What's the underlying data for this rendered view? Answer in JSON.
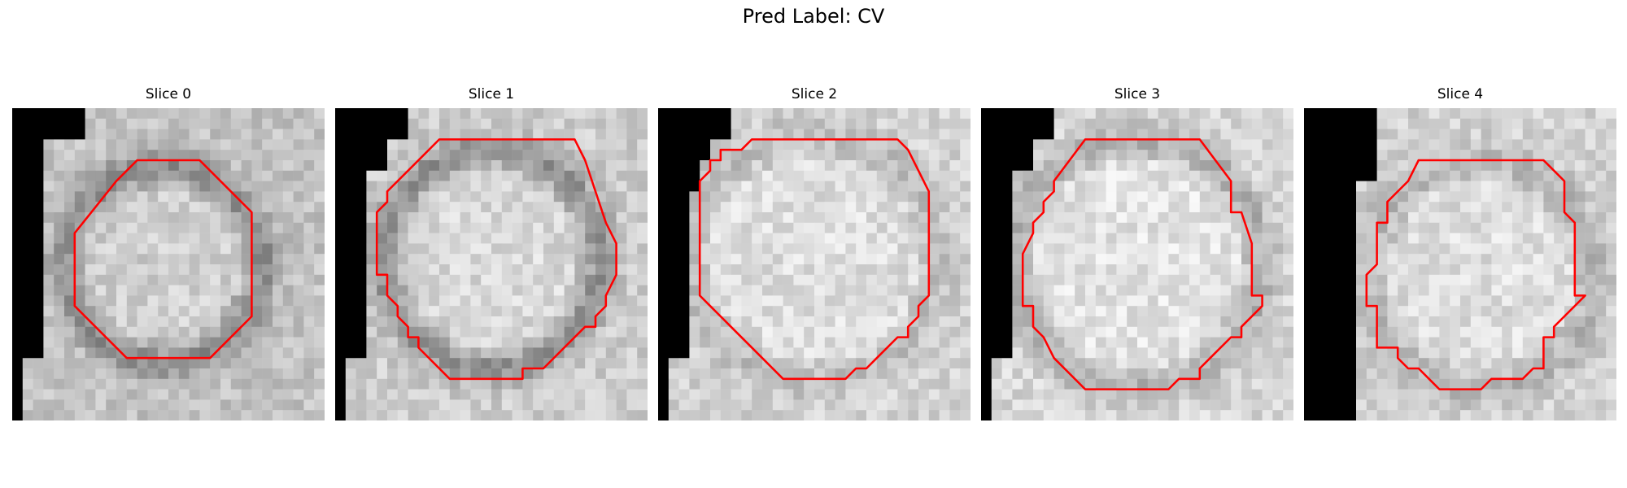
{
  "figure": {
    "title": "Pred Label: CV"
  },
  "panels": [
    {
      "title": "Slice 0",
      "mask": "red-contour-outline",
      "contour": [
        [
          12,
          5
        ],
        [
          18,
          5
        ],
        [
          23,
          10
        ],
        [
          23,
          20
        ],
        [
          19,
          24
        ],
        [
          11,
          24
        ],
        [
          6,
          19
        ],
        [
          6,
          12
        ],
        [
          10,
          7
        ],
        [
          11,
          6
        ]
      ],
      "dark_mask": [
        [
          0,
          0
        ],
        [
          7,
          0
        ],
        [
          7,
          3
        ],
        [
          3,
          3
        ],
        [
          3,
          9
        ],
        [
          3,
          24
        ],
        [
          1,
          24
        ],
        [
          1,
          30
        ],
        [
          0,
          30
        ]
      ],
      "texture": {
        "base": 195,
        "ring_center": [
          14.5,
          15
        ],
        "ring_radius": 9.5,
        "ring_darkness": 55,
        "seed": 11
      }
    },
    {
      "title": "Slice 1",
      "mask": "red-contour-outline",
      "contour": [
        [
          10,
          3
        ],
        [
          23,
          3
        ],
        [
          24,
          5
        ],
        [
          25,
          8
        ],
        [
          26,
          11
        ],
        [
          27,
          13
        ],
        [
          27,
          16
        ],
        [
          26,
          18
        ],
        [
          26,
          19
        ],
        [
          25,
          20
        ],
        [
          25,
          21
        ],
        [
          24,
          21
        ],
        [
          20,
          25
        ],
        [
          18,
          25
        ],
        [
          18,
          26
        ],
        [
          11,
          26
        ],
        [
          8,
          23
        ],
        [
          8,
          22
        ],
        [
          7,
          22
        ],
        [
          7,
          21
        ],
        [
          6,
          20
        ],
        [
          6,
          19
        ],
        [
          5,
          18
        ],
        [
          5,
          16
        ],
        [
          4,
          16
        ],
        [
          4,
          10
        ],
        [
          5,
          9
        ],
        [
          5,
          8
        ]
      ],
      "dark_mask": [
        [
          0,
          0
        ],
        [
          7,
          0
        ],
        [
          7,
          3
        ],
        [
          5,
          3
        ],
        [
          5,
          6
        ],
        [
          3,
          6
        ],
        [
          3,
          24
        ],
        [
          1,
          24
        ],
        [
          1,
          30
        ],
        [
          0,
          30
        ]
      ],
      "texture": {
        "base": 205,
        "ring_center": [
          15,
          14.5
        ],
        "ring_radius": 10.5,
        "ring_darkness": 60,
        "seed": 23
      }
    },
    {
      "title": "Slice 2",
      "mask": "red-contour-outline",
      "contour": [
        [
          9,
          3
        ],
        [
          23,
          3
        ],
        [
          24,
          4
        ],
        [
          25,
          6
        ],
        [
          26,
          8
        ],
        [
          26,
          18
        ],
        [
          25,
          19
        ],
        [
          25,
          20
        ],
        [
          24,
          21
        ],
        [
          24,
          22
        ],
        [
          23,
          22
        ],
        [
          21,
          24
        ],
        [
          20,
          25
        ],
        [
          19,
          25
        ],
        [
          18,
          26
        ],
        [
          12,
          26
        ],
        [
          10,
          24
        ],
        [
          7,
          21
        ],
        [
          6,
          20
        ],
        [
          5,
          19
        ],
        [
          4,
          18
        ],
        [
          4,
          7
        ],
        [
          5,
          6
        ],
        [
          5,
          5
        ],
        [
          6,
          5
        ],
        [
          6,
          4
        ],
        [
          8,
          4
        ],
        [
          9,
          3
        ]
      ],
      "dark_mask": [
        [
          0,
          0
        ],
        [
          7,
          0
        ],
        [
          7,
          3
        ],
        [
          5,
          3
        ],
        [
          5,
          5
        ],
        [
          4,
          5
        ],
        [
          4,
          8
        ],
        [
          3,
          8
        ],
        [
          3,
          24
        ],
        [
          1,
          24
        ],
        [
          1,
          30
        ],
        [
          0,
          30
        ]
      ],
      "texture": {
        "base": 210,
        "ring_center": [
          15,
          14.5
        ],
        "ring_radius": 12,
        "ring_darkness": 20,
        "seed": 37
      }
    },
    {
      "title": "Slice 3",
      "mask": "red-contour-outline",
      "contour": [
        [
          10,
          3
        ],
        [
          21,
          3
        ],
        [
          24,
          7
        ],
        [
          24,
          10
        ],
        [
          25,
          10
        ],
        [
          26,
          13
        ],
        [
          26,
          18
        ],
        [
          27,
          18
        ],
        [
          27,
          19
        ],
        [
          25,
          21
        ],
        [
          25,
          22
        ],
        [
          24,
          22
        ],
        [
          22,
          24
        ],
        [
          21,
          25
        ],
        [
          21,
          26
        ],
        [
          19,
          26
        ],
        [
          18,
          27
        ],
        [
          12,
          27
        ],
        [
          10,
          27
        ],
        [
          8,
          25
        ],
        [
          7,
          24
        ],
        [
          6,
          22
        ],
        [
          5,
          21
        ],
        [
          5,
          19
        ],
        [
          4,
          19
        ],
        [
          4,
          14
        ],
        [
          5,
          12
        ],
        [
          5,
          11
        ],
        [
          6,
          10
        ],
        [
          6,
          9
        ],
        [
          7,
          8
        ],
        [
          7,
          7
        ]
      ],
      "dark_mask": [
        [
          0,
          0
        ],
        [
          7,
          0
        ],
        [
          7,
          3
        ],
        [
          5,
          3
        ],
        [
          5,
          6
        ],
        [
          3,
          6
        ],
        [
          3,
          24
        ],
        [
          1,
          24
        ],
        [
          1,
          30
        ],
        [
          0,
          30
        ]
      ],
      "texture": {
        "base": 215,
        "ring_center": [
          15,
          15
        ],
        "ring_radius": 12,
        "ring_darkness": 40,
        "seed": 53
      }
    },
    {
      "title": "Slice 4",
      "mask": "red-contour-outline",
      "contour": [
        [
          11,
          5
        ],
        [
          23,
          5
        ],
        [
          25,
          7
        ],
        [
          25,
          10
        ],
        [
          26,
          11
        ],
        [
          26,
          18
        ],
        [
          27,
          18
        ],
        [
          24,
          21
        ],
        [
          24,
          22
        ],
        [
          23,
          22
        ],
        [
          23,
          25
        ],
        [
          22,
          25
        ],
        [
          21,
          26
        ],
        [
          18,
          26
        ],
        [
          17,
          27
        ],
        [
          13,
          27
        ],
        [
          12,
          26
        ],
        [
          11,
          25
        ],
        [
          10,
          25
        ],
        [
          9,
          24
        ],
        [
          9,
          23
        ],
        [
          7,
          23
        ],
        [
          7,
          22
        ],
        [
          7,
          19
        ],
        [
          6,
          19
        ],
        [
          6,
          18
        ],
        [
          6,
          16
        ],
        [
          7,
          15
        ],
        [
          7,
          11
        ],
        [
          8,
          11
        ],
        [
          8,
          9
        ],
        [
          9,
          8
        ],
        [
          10,
          7
        ]
      ],
      "dark_mask": [
        [
          0,
          0
        ],
        [
          7,
          0
        ],
        [
          7,
          7
        ],
        [
          5,
          7
        ],
        [
          5,
          30
        ],
        [
          0,
          30
        ]
      ],
      "texture": {
        "base": 210,
        "ring_center": [
          17,
          16
        ],
        "ring_radius": 11,
        "ring_darkness": 28,
        "seed": 71
      }
    }
  ]
}
